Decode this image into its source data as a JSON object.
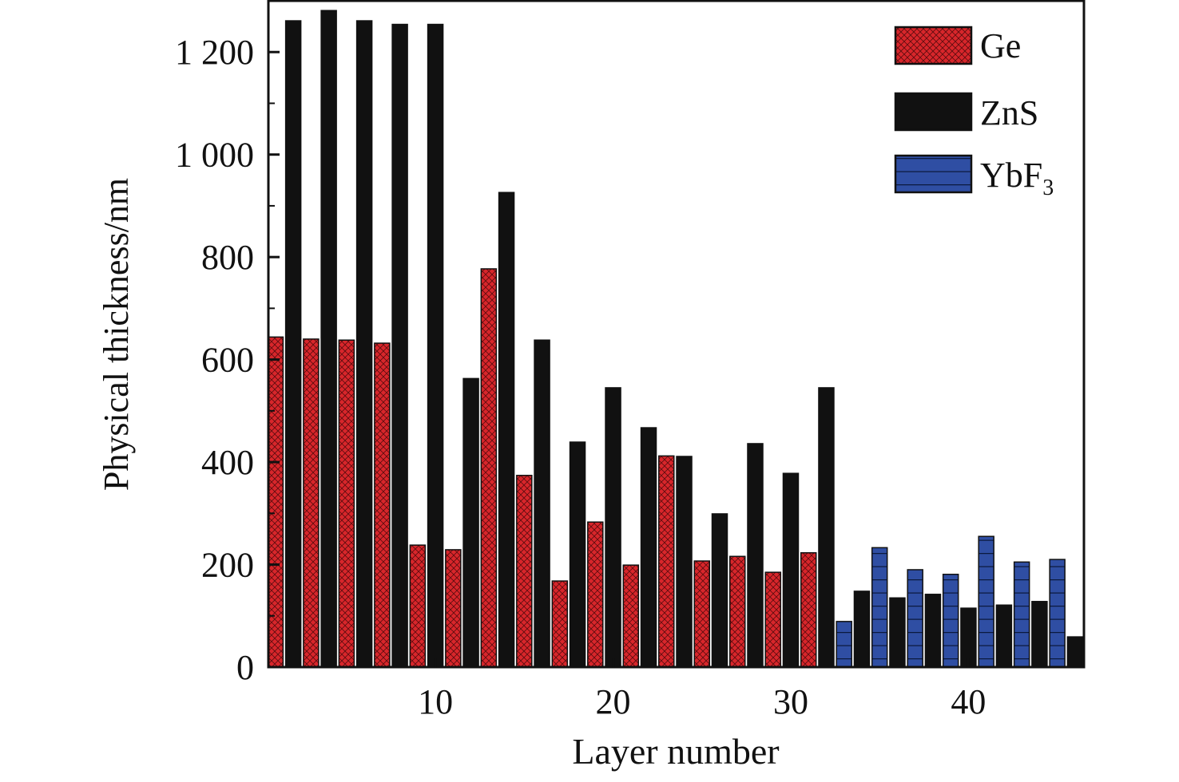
{
  "chart_data": {
    "type": "bar",
    "xlabel": "Layer number",
    "ylabel": "Physical thickness/nm",
    "xlim": [
      0.6,
      46.5
    ],
    "ylim": [
      0,
      1300
    ],
    "xticks": [
      10,
      20,
      30,
      40
    ],
    "xtick_labels": [
      "10",
      "20",
      "30",
      "40"
    ],
    "yticks": [
      0,
      200,
      400,
      600,
      800,
      1000,
      1200
    ],
    "ytick_labels": [
      "0",
      "200",
      "400",
      "600",
      "800",
      "1 000",
      "1 200"
    ],
    "grid": false,
    "legend_position": "top-right",
    "series": [
      {
        "name": "Ge",
        "color": "#d8262b",
        "pattern": "crosshatch",
        "x": [
          1,
          3,
          5,
          7,
          9,
          11,
          13,
          15,
          17,
          19,
          21,
          23,
          25,
          27,
          29,
          31
        ],
        "values": [
          644,
          640,
          638,
          632,
          238,
          229,
          777,
          374,
          168,
          283,
          199,
          412,
          207,
          216,
          185,
          223
        ]
      },
      {
        "name": "ZnS",
        "color": "#111111",
        "pattern": "solid",
        "x": [
          2,
          4,
          6,
          8,
          10,
          12,
          14,
          16,
          18,
          20,
          22,
          24,
          26,
          28,
          30,
          32,
          34,
          36,
          38,
          40,
          42,
          44,
          46
        ],
        "values": [
          1261,
          1281,
          1261,
          1254,
          1254,
          563,
          926,
          638,
          439,
          545,
          467,
          411,
          299,
          436,
          378,
          545,
          148,
          135,
          142,
          115,
          121,
          128,
          59
        ]
      },
      {
        "name": "YbF3",
        "label_main": "YbF",
        "label_sub": "3",
        "color": "#2f4ea3",
        "pattern": "horizontal-lines",
        "x": [
          33,
          35,
          37,
          39,
          41,
          43,
          45
        ],
        "values": [
          89,
          233,
          190,
          181,
          255,
          205,
          210
        ]
      }
    ]
  }
}
